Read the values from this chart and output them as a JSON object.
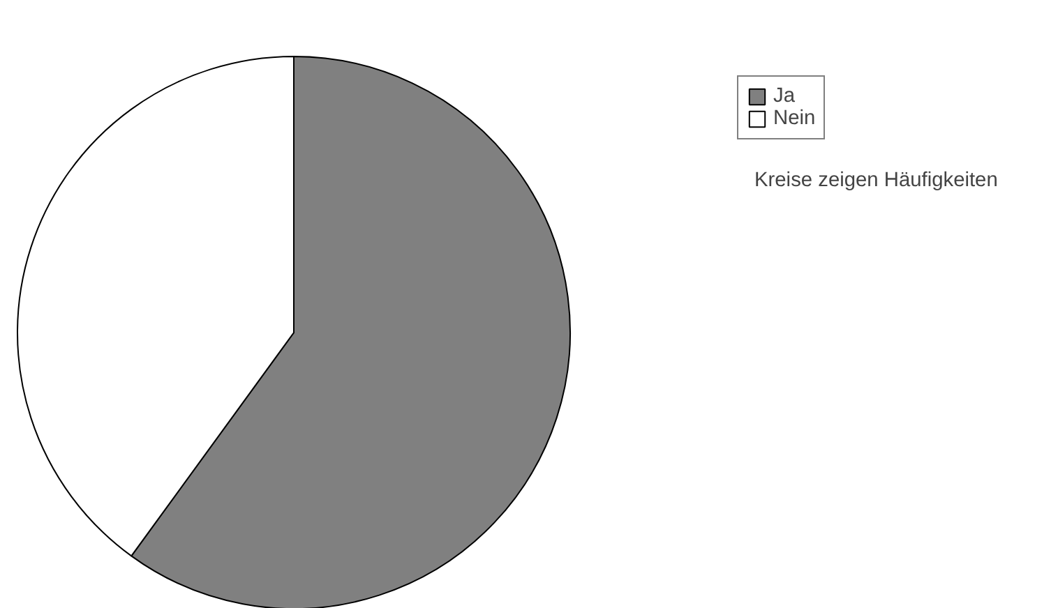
{
  "chart_data": {
    "type": "pie",
    "categories": [
      "Ja",
      "Nein"
    ],
    "values": [
      60,
      40
    ],
    "colors": [
      "#808080",
      "#ffffff"
    ],
    "legend": "top right",
    "annotations": [
      "Kreise zeigen Häufigkeiten"
    ]
  }
}
